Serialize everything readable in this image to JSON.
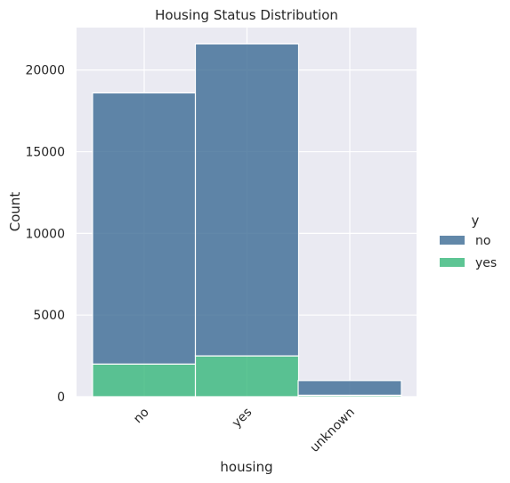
{
  "chart_data": {
    "type": "bar",
    "stacked": true,
    "title": "Housing Status Distribution",
    "xlabel": "housing",
    "ylabel": "Count",
    "categories": [
      "no",
      "yes",
      "unknown"
    ],
    "series": [
      {
        "name": "no",
        "values": [
          16600,
          19100,
          900
        ],
        "color": "#3b6a93"
      },
      {
        "name": "yes",
        "values": [
          2000,
          2500,
          90
        ],
        "color": "#35b779"
      }
    ],
    "ylim": [
      0,
      22600
    ],
    "yticks": [
      0,
      5000,
      10000,
      15000,
      20000
    ],
    "ytick_labels": [
      "0",
      "5000",
      "10000",
      "15000",
      "20000"
    ],
    "grid": true,
    "legend": {
      "title": "y",
      "position": "right",
      "entries": [
        "no",
        "yes"
      ]
    },
    "colors": {
      "plot_background": "#eaeaf2",
      "grid": "#ffffff"
    }
  }
}
